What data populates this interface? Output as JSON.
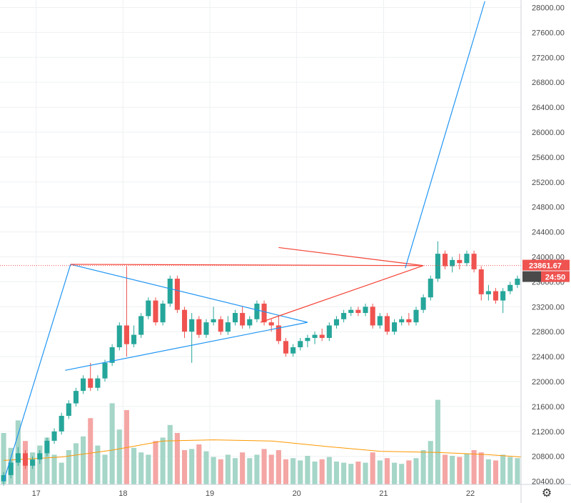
{
  "chart_data": {
    "type": "candlestick",
    "y_axis": {
      "range": [
        20350,
        28120
      ],
      "ticks": [
        "28000.00",
        "27600.00",
        "27200.00",
        "26800.00",
        "26400.00",
        "26000.00",
        "25600.00",
        "25200.00",
        "24800.00",
        "24400.00",
        "24000.00",
        "23600.00",
        "23200.00",
        "22800.00",
        "22400.00",
        "22000.00",
        "21600.00",
        "21200.00",
        "20800.00",
        "20400.00"
      ]
    },
    "x_axis": {
      "range": [
        "2020-12-16T14:00",
        "2020-12-22T14:00"
      ],
      "ticks": [
        {
          "label": "17",
          "t": "2020-12-17"
        },
        {
          "label": "18",
          "t": "2020-12-18"
        },
        {
          "label": "19",
          "t": "2020-12-19"
        },
        {
          "label": "20",
          "t": "2020-12-20"
        },
        {
          "label": "21",
          "t": "2020-12-21"
        },
        {
          "label": "22",
          "t": "2020-12-22"
        }
      ]
    },
    "candle_interval_hours": 2,
    "candles_start": "2020-12-16T15:00",
    "candles": [
      [
        20400,
        20550,
        20330,
        20500
      ],
      [
        20500,
        20750,
        20450,
        20700
      ],
      [
        20700,
        20950,
        20650,
        20850
      ],
      [
        20850,
        20900,
        20600,
        20650
      ],
      [
        20650,
        20800,
        20600,
        20750
      ],
      [
        20750,
        20900,
        20680,
        20850
      ],
      [
        20850,
        21100,
        20800,
        21050
      ],
      [
        21050,
        21250,
        21000,
        21200
      ],
      [
        21200,
        21500,
        21150,
        21450
      ],
      [
        21450,
        21700,
        21400,
        21650
      ],
      [
        21650,
        21900,
        21600,
        21850
      ],
      [
        21850,
        22100,
        21800,
        22050
      ],
      [
        22050,
        22300,
        21850,
        21900
      ],
      [
        21900,
        22100,
        21850,
        22050
      ],
      [
        22050,
        22350,
        22000,
        22300
      ],
      [
        22300,
        22600,
        22250,
        22550
      ],
      [
        22550,
        22950,
        22500,
        22900
      ],
      [
        22900,
        23850,
        22400,
        22600
      ],
      [
        22600,
        22900,
        22550,
        22750
      ],
      [
        22750,
        23100,
        22700,
        23050
      ],
      [
        23050,
        23350,
        23000,
        23300
      ],
      [
        23300,
        23350,
        22900,
        22950
      ],
      [
        22950,
        23300,
        22900,
        23250
      ],
      [
        23250,
        23700,
        23200,
        23650
      ],
      [
        23650,
        23700,
        23100,
        23150
      ],
      [
        23150,
        23200,
        22700,
        22800
      ],
      [
        22800,
        23100,
        22300,
        23000
      ],
      [
        23000,
        23050,
        22700,
        22750
      ],
      [
        22750,
        23000,
        22700,
        22950
      ],
      [
        22950,
        23200,
        22900,
        23000
      ],
      [
        23000,
        23050,
        22750,
        22800
      ],
      [
        22800,
        23050,
        22750,
        22950
      ],
      [
        22950,
        23150,
        22900,
        23100
      ],
      [
        23100,
        23200,
        22850,
        22900
      ],
      [
        22900,
        23050,
        22850,
        23000
      ],
      [
        23000,
        23300,
        22950,
        23250
      ],
      [
        23250,
        23300,
        22900,
        22950
      ],
      [
        22950,
        23000,
        22800,
        22900
      ],
      [
        22900,
        23050,
        22600,
        22650
      ],
      [
        22650,
        22700,
        22400,
        22450
      ],
      [
        22450,
        22600,
        22400,
        22550
      ],
      [
        22550,
        22700,
        22500,
        22650
      ],
      [
        22650,
        22750,
        22550,
        22700
      ],
      [
        22700,
        22800,
        22600,
        22750
      ],
      [
        22750,
        22850,
        22650,
        22700
      ],
      [
        22700,
        22950,
        22650,
        22900
      ],
      [
        22900,
        23050,
        22850,
        23000
      ],
      [
        23000,
        23150,
        22950,
        23100
      ],
      [
        23100,
        23200,
        23050,
        23150
      ],
      [
        23150,
        23200,
        23050,
        23100
      ],
      [
        23100,
        23250,
        23050,
        23200
      ],
      [
        23200,
        23250,
        22850,
        22900
      ],
      [
        22900,
        23100,
        22850,
        23050
      ],
      [
        23050,
        23100,
        22750,
        22800
      ],
      [
        22800,
        23000,
        22750,
        22950
      ],
      [
        22950,
        23050,
        22900,
        23000
      ],
      [
        23000,
        23100,
        22900,
        22950
      ],
      [
        22950,
        23200,
        22900,
        23150
      ],
      [
        23150,
        23400,
        23100,
        23350
      ],
      [
        23350,
        23700,
        23300,
        23650
      ],
      [
        23650,
        24250,
        23600,
        24050
      ],
      [
        24050,
        24100,
        23800,
        23850
      ],
      [
        23850,
        24000,
        23750,
        23950
      ],
      [
        23950,
        24050,
        23800,
        23900
      ],
      [
        23900,
        24100,
        23850,
        24050
      ],
      [
        24050,
        24100,
        23750,
        23800
      ],
      [
        23800,
        23850,
        23300,
        23400
      ],
      [
        23400,
        23550,
        23300,
        23450
      ],
      [
        23450,
        23500,
        23250,
        23300
      ],
      [
        23300,
        23500,
        23100,
        23450
      ],
      [
        23450,
        23600,
        23400,
        23550
      ],
      [
        23550,
        23700,
        23500,
        23650
      ],
      [
        23650,
        23750,
        23550,
        23600
      ],
      [
        23600,
        23650,
        23350,
        23400
      ],
      [
        23400,
        23550,
        23300,
        23500
      ],
      [
        23500,
        23600,
        23450,
        23550
      ],
      [
        23550,
        23900,
        23500,
        23850
      ],
      [
        23850,
        23900,
        23650,
        23700
      ],
      [
        23700,
        23900,
        23650,
        23850
      ],
      [
        23850,
        23920,
        23800,
        23862
      ]
    ],
    "volume": [
      450,
      320,
      560,
      380,
      280,
      340,
      410,
      260,
      190,
      300,
      360,
      420,
      580,
      340,
      260,
      710,
      480,
      650,
      320,
      280,
      260,
      380,
      410,
      520,
      450,
      300,
      310,
      350,
      290,
      240,
      220,
      260,
      230,
      280,
      230,
      260,
      310,
      260,
      300,
      220,
      230,
      210,
      250,
      200,
      220,
      240,
      200,
      190,
      180,
      200,
      190,
      280,
      210,
      230,
      190,
      180,
      210,
      230,
      300,
      380,
      740,
      260,
      250,
      240,
      270,
      300,
      280,
      220,
      210,
      260,
      240,
      230,
      200,
      220,
      250,
      200,
      190,
      230,
      210,
      180
    ],
    "volume_ma": [
      [
        0,
        210
      ],
      [
        8,
        240
      ],
      [
        15,
        300
      ],
      [
        22,
        380
      ],
      [
        29,
        390
      ],
      [
        37,
        380
      ],
      [
        45,
        330
      ],
      [
        52,
        290
      ],
      [
        60,
        280
      ],
      [
        67,
        260
      ],
      [
        75,
        225
      ],
      [
        79,
        220
      ]
    ],
    "last_price": "23861.67",
    "countdown": "24:50",
    "drawings": [
      {
        "color": "#2196f3",
        "points": [
          [
            "2020-12-16T15:00",
            20400
          ],
          [
            "2020-12-17T09:30",
            23880
          ]
        ]
      },
      {
        "color": "#2196f3",
        "points": [
          [
            "2020-12-17T09:30",
            23880
          ],
          [
            "2020-12-20T03:00",
            22950
          ]
        ]
      },
      {
        "color": "#2196f3",
        "points": [
          [
            "2020-12-17T08:00",
            22180
          ],
          [
            "2020-12-20T03:00",
            22950
          ]
        ]
      },
      {
        "color": "#f44336",
        "points": [
          [
            "2020-12-17T09:30",
            23880
          ],
          [
            "2020-12-21T11:00",
            23860
          ]
        ]
      },
      {
        "color": "#f44336",
        "points": [
          [
            "2020-12-19T14:00",
            22950
          ],
          [
            "2020-12-21T11:00",
            23860
          ]
        ]
      },
      {
        "color": "#f44336",
        "points": [
          [
            "2020-12-19T19:00",
            24150
          ],
          [
            "2020-12-21T11:00",
            23860
          ]
        ]
      },
      {
        "color": "#2196f3",
        "points": [
          [
            "2020-12-21T06:00",
            23820
          ],
          [
            "2020-12-22T04:00",
            28100
          ]
        ]
      }
    ],
    "colors": {
      "up": "#26a69a",
      "down": "#ef5350",
      "volume_up": "#a5d6c8",
      "volume_down": "#f4a6a4",
      "volume_ma": "#ff9800",
      "grid": "#eef0f3",
      "price_tag": "#ef5350",
      "countdown_tag": "#4a4a4a"
    },
    "legend": "none",
    "grid": true
  },
  "ui": {
    "settings_icon": "gear-icon",
    "settings_glyph": "⚙"
  }
}
